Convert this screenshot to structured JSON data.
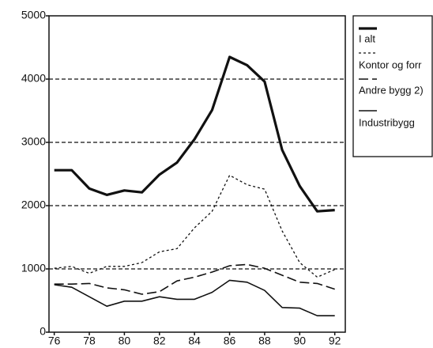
{
  "chart_data": {
    "type": "line",
    "x": [
      76,
      77,
      78,
      79,
      80,
      81,
      82,
      83,
      84,
      85,
      86,
      87,
      88,
      89,
      90,
      91,
      92
    ],
    "series": [
      {
        "name": "I alt",
        "color": "#111111",
        "width": 3.2,
        "dash": "none",
        "values": [
          2560,
          2560,
          2270,
          2170,
          2240,
          2210,
          2490,
          2680,
          3050,
          3510,
          4350,
          4220,
          3960,
          2880,
          2310,
          1910,
          1930
        ]
      },
      {
        "name": "Kontor og forr",
        "color": "#111111",
        "width": 1.3,
        "dash": "3 3",
        "values": [
          1010,
          1040,
          930,
          1040,
          1040,
          1100,
          1270,
          1320,
          1650,
          1910,
          2480,
          2330,
          2260,
          1600,
          1100,
          870,
          990
        ]
      },
      {
        "name": "Andre bygg 2)",
        "color": "#111111",
        "width": 1.6,
        "dash": "12 5",
        "values": [
          760,
          760,
          770,
          700,
          670,
          600,
          640,
          810,
          870,
          950,
          1050,
          1070,
          1010,
          900,
          790,
          770,
          680
        ]
      },
      {
        "name": "Industribygg",
        "color": "#111111",
        "width": 1.6,
        "dash": "none",
        "values": [
          750,
          710,
          560,
          410,
          490,
          490,
          560,
          520,
          520,
          630,
          820,
          790,
          660,
          390,
          380,
          260,
          260
        ]
      }
    ],
    "xlim": [
      75.7,
      92.6
    ],
    "xticks": [
      76,
      78,
      80,
      82,
      84,
      86,
      88,
      90,
      92
    ],
    "ylim": [
      0,
      5000
    ],
    "yticks": [
      0,
      1000,
      2000,
      3000,
      4000,
      5000
    ],
    "grid": true
  }
}
